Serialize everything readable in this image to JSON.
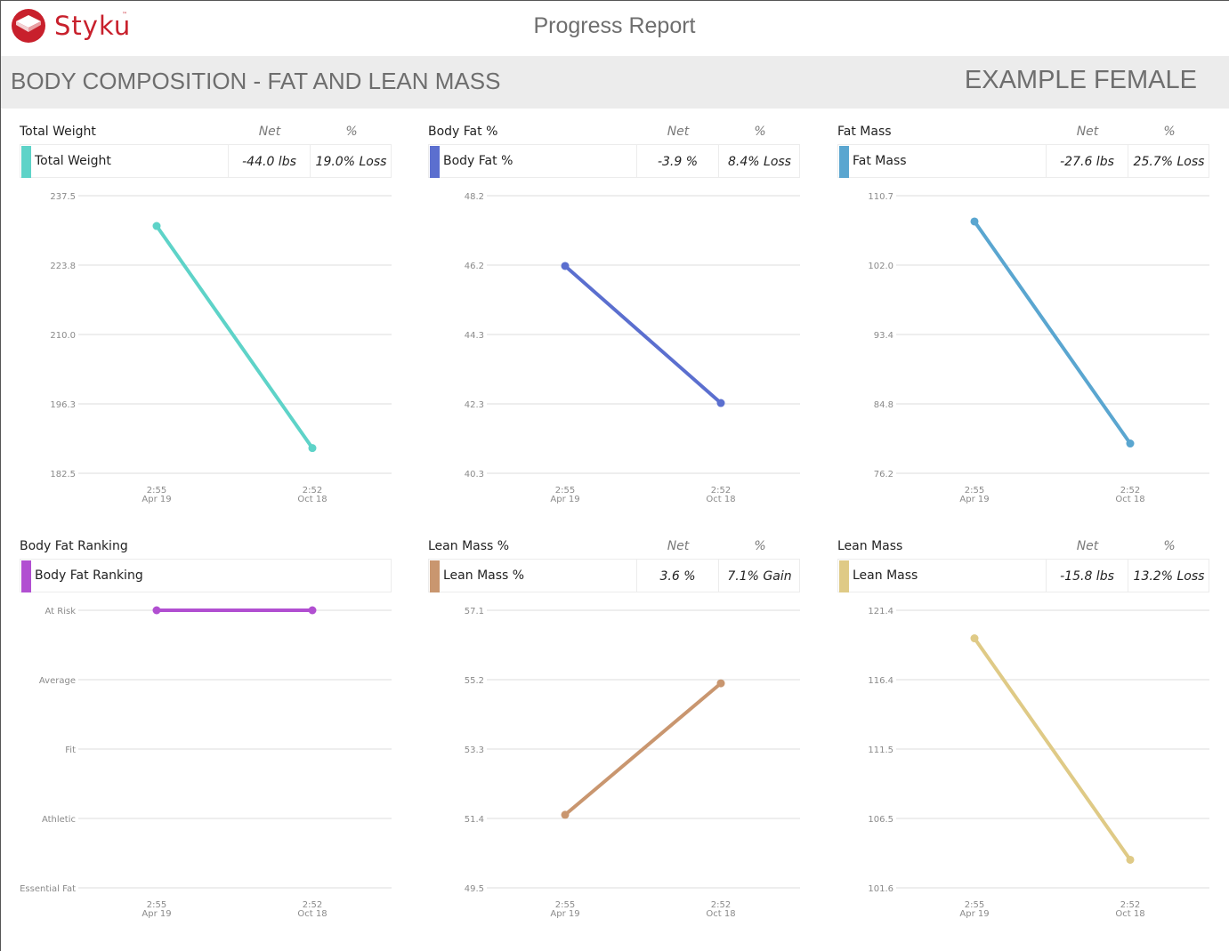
{
  "header": {
    "brand": "Styku",
    "brand_tm": "™",
    "report_title": "Progress Report"
  },
  "section": {
    "title": "BODY COMPOSITION - FAT AND LEAN MASS",
    "client": "EXAMPLE FEMALE"
  },
  "panels": [
    {
      "title": "Total Weight",
      "net_header": "Net",
      "pct_header": "%",
      "legend_label": "Total Weight",
      "net": "-44.0 lbs",
      "pct": "19.0% Loss",
      "color": "#5ed3c8"
    },
    {
      "title": "Body Fat %",
      "net_header": "Net",
      "pct_header": "%",
      "legend_label": "Body Fat %",
      "net": "-3.9 %",
      "pct": "8.4% Loss",
      "color": "#5b6fcf"
    },
    {
      "title": "Fat Mass",
      "net_header": "Net",
      "pct_header": "%",
      "legend_label": "Fat Mass",
      "net": "-27.6 lbs",
      "pct": "25.7% Loss",
      "color": "#5aa6d0"
    },
    {
      "title": "Body Fat Ranking",
      "legend_label": "Body Fat Ranking",
      "color": "#b14fd1"
    },
    {
      "title": "Lean Mass %",
      "net_header": "Net",
      "pct_header": "%",
      "legend_label": "Lean Mass %",
      "net": "3.6 %",
      "pct": "7.1% Gain",
      "color": "#c9966f"
    },
    {
      "title": "Lean Mass",
      "net_header": "Net",
      "pct_header": "%",
      "legend_label": "Lean Mass",
      "net": "-15.8 lbs",
      "pct": "13.2% Loss",
      "color": "#dfca86"
    }
  ],
  "chart_data": [
    {
      "type": "line",
      "x": [
        "2:55 Apr 19",
        "2:52 Oct 18"
      ],
      "series": [
        {
          "name": "Total Weight",
          "values": [
            231.5,
            187.5
          ]
        }
      ],
      "y_ticks": [
        "237.5",
        "223.8",
        "210.0",
        "196.3",
        "182.5"
      ],
      "ylim": [
        182.5,
        237.5
      ],
      "grid": true
    },
    {
      "type": "line",
      "x": [
        "2:55 Apr 19",
        "2:52 Oct 18"
      ],
      "series": [
        {
          "name": "Body Fat %",
          "values": [
            46.2,
            42.3
          ]
        }
      ],
      "y_ticks": [
        "48.2",
        "46.2",
        "44.3",
        "42.3",
        "40.3"
      ],
      "ylim": [
        40.3,
        48.2
      ],
      "grid": true
    },
    {
      "type": "line",
      "x": [
        "2:55 Apr 19",
        "2:52 Oct 18"
      ],
      "series": [
        {
          "name": "Fat Mass",
          "values": [
            107.5,
            79.9
          ]
        }
      ],
      "y_ticks": [
        "110.7",
        "102.0",
        "93.4",
        "84.8",
        "76.2"
      ],
      "ylim": [
        76.2,
        110.7
      ],
      "grid": true
    },
    {
      "type": "line",
      "x": [
        "2:55 Apr 19",
        "2:52 Oct 18"
      ],
      "series": [
        {
          "name": "Body Fat Ranking",
          "values": [
            4,
            4
          ]
        }
      ],
      "y_ticks": [
        "At Risk",
        "Average",
        "Fit",
        "Athletic",
        "Essential Fat"
      ],
      "ylim": [
        0,
        4
      ],
      "grid": true
    },
    {
      "type": "line",
      "x": [
        "2:55 Apr 19",
        "2:52 Oct 18"
      ],
      "series": [
        {
          "name": "Lean Mass %",
          "values": [
            51.5,
            55.1
          ]
        }
      ],
      "y_ticks": [
        "57.1",
        "55.2",
        "53.3",
        "51.4",
        "49.5"
      ],
      "ylim": [
        49.5,
        57.1
      ],
      "grid": true
    },
    {
      "type": "line",
      "x": [
        "2:55 Apr 19",
        "2:52 Oct 18"
      ],
      "series": [
        {
          "name": "Lean Mass",
          "values": [
            119.4,
            103.6
          ]
        }
      ],
      "y_ticks": [
        "121.4",
        "116.4",
        "111.5",
        "106.5",
        "101.6"
      ],
      "ylim": [
        101.6,
        121.4
      ],
      "grid": true
    }
  ]
}
